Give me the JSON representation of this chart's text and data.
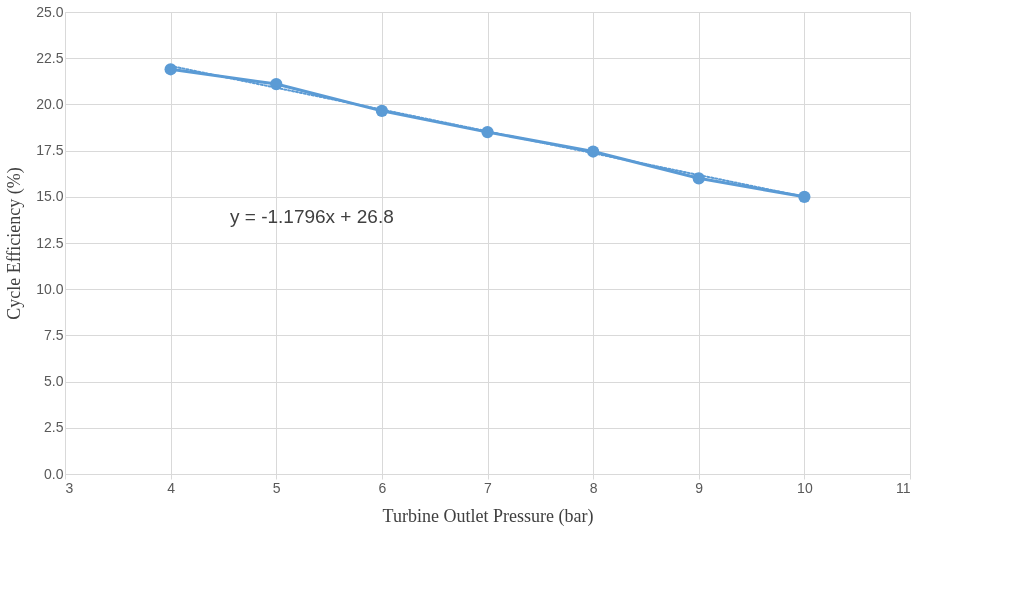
{
  "chart_data": {
    "type": "line",
    "xlabel": "Turbine Outlet Pressure (bar)",
    "ylabel": "Cycle Efficiency (%)",
    "xlim": [
      3,
      11
    ],
    "xticks": [
      3,
      4,
      5,
      6,
      7,
      8,
      9,
      10,
      11
    ],
    "ylim": [
      0,
      25
    ],
    "yticks": [
      {
        "value": 0,
        "label": "0.0"
      },
      {
        "value": 2.5,
        "label": "2.5"
      },
      {
        "value": 5,
        "label": "5.0"
      },
      {
        "value": 7.5,
        "label": "7.5"
      },
      {
        "value": 10,
        "label": "10.0"
      },
      {
        "value": 12.5,
        "label": "12.5"
      },
      {
        "value": 15,
        "label": "15.0"
      },
      {
        "value": 17.5,
        "label": "17.5"
      },
      {
        "value": 20,
        "label": "20.0"
      },
      {
        "value": 22.5,
        "label": "22.5"
      },
      {
        "value": 25,
        "label": "25.0"
      }
    ],
    "grid": true,
    "marker": "circle",
    "line_style": "solid",
    "series": [
      {
        "color": "#5b9bd5",
        "x": [
          4,
          5,
          6,
          7,
          8,
          9,
          10
        ],
        "values": [
          21.9,
          21.1,
          19.65,
          18.5,
          17.45,
          16.0,
          15.0
        ]
      },
      {
        "type": "line",
        "color": "#5b9bd5",
        "x": [
          4,
          10
        ],
        "values": [
          22.08,
          15.0
        ],
        "marker": "none",
        "line_style": "dotted"
      }
    ],
    "annotations": [
      "y = -1.1796x + 26.8"
    ]
  }
}
